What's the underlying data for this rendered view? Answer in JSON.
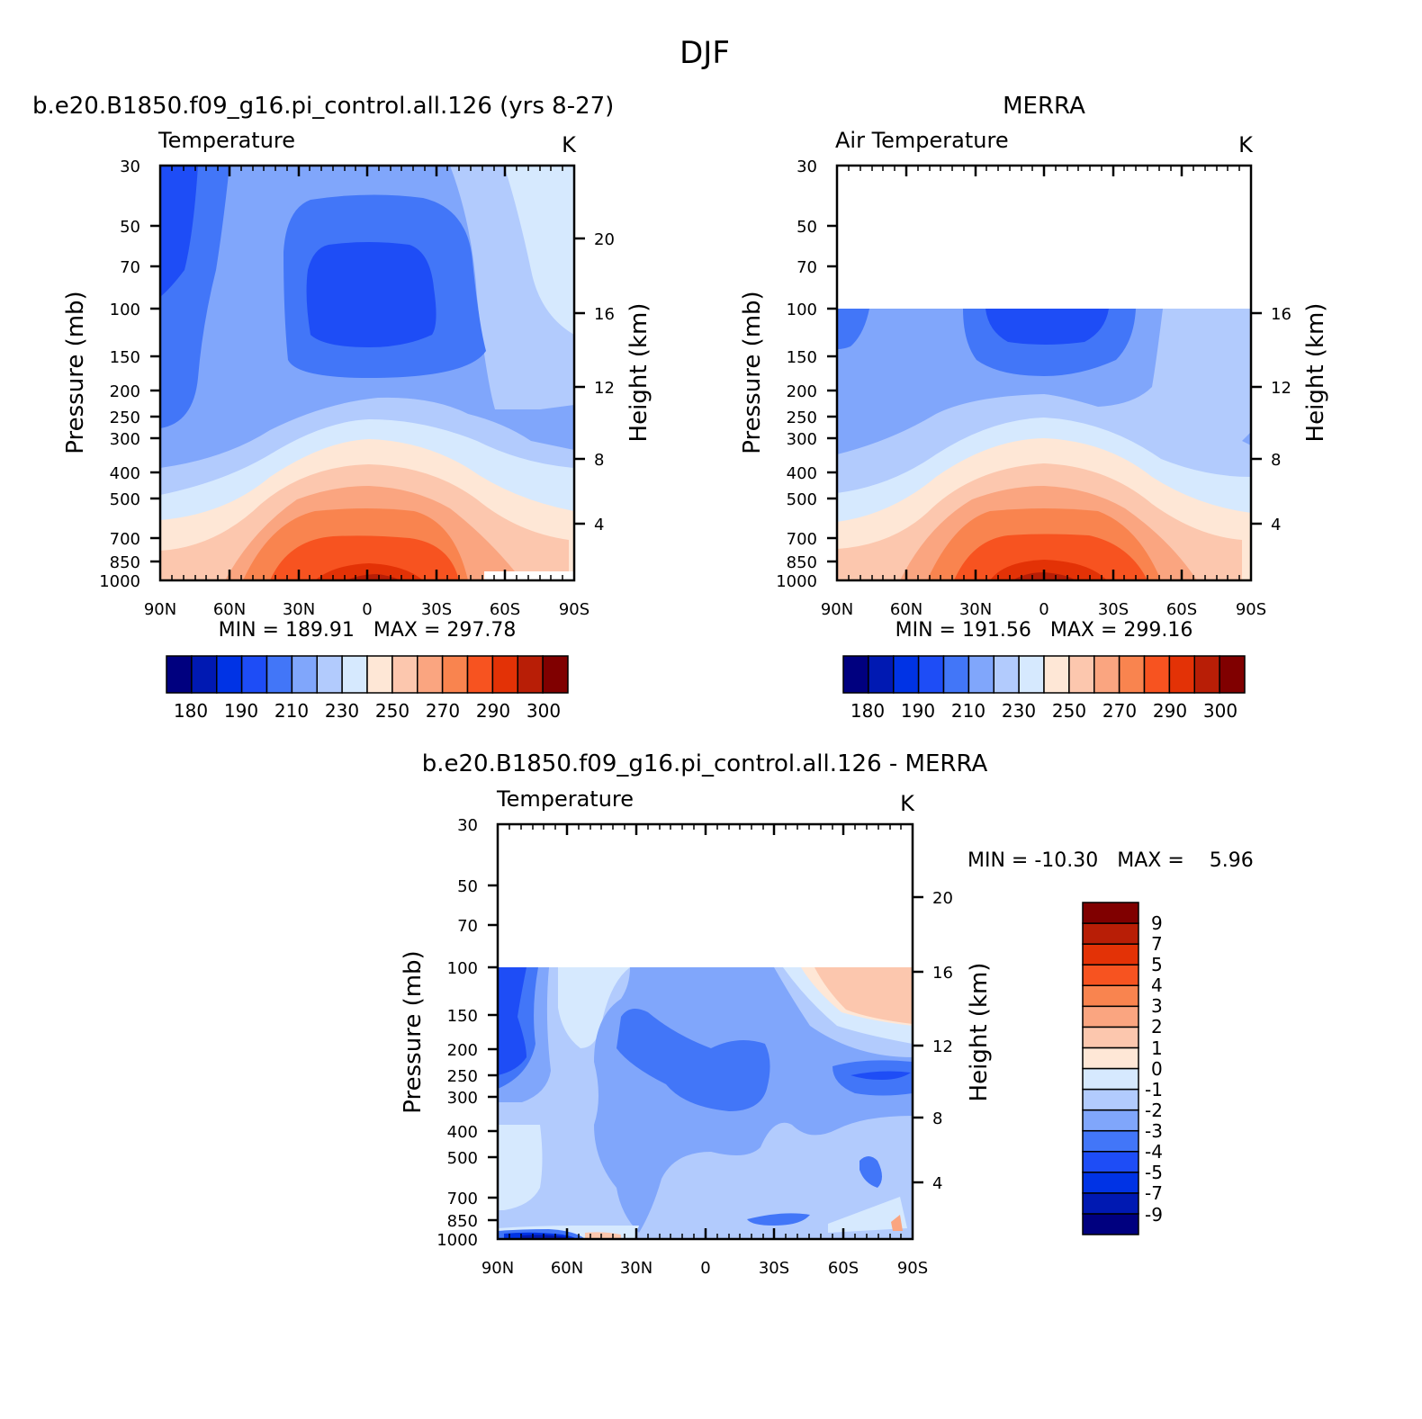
{
  "figure": {
    "title": "DJF"
  },
  "colors": {
    "abs_palette": [
      "#00007f",
      "#0019b2",
      "#0033e5",
      "#1e4df6",
      "#4276f8",
      "#80a6fb",
      "#b2cbfd",
      "#d6e9fe",
      "#fee7d6",
      "#fcc7ae",
      "#faa580",
      "#f9844f",
      "#f75320",
      "#e33206",
      "#b81e06",
      "#800000"
    ],
    "diff_palette": [
      "#00007f",
      "#0019b2",
      "#0033e5",
      "#1e4df6",
      "#4276f8",
      "#80a6fb",
      "#b2cbfd",
      "#d6e9fe",
      "#fee7d6",
      "#fcc7ae",
      "#faa580",
      "#f9844f",
      "#f75320",
      "#e33206",
      "#b81e06",
      "#800000"
    ]
  },
  "chart_data": [
    {
      "type": "heatmap",
      "panel": "model",
      "title": "b.e20.B1850.f09_g16.pi_control.all.126 (yrs 8-27)",
      "subtitle": "Temperature",
      "units": "K",
      "ylabel": "Pressure (mb)",
      "ylabel_right": "Height (km)",
      "stats": "MIN = 189.91   MAX = 297.78",
      "x_ticks": [
        "90N",
        "60N",
        "30N",
        "0",
        "30S",
        "60S",
        "90S"
      ],
      "x_values": [
        90,
        60,
        30,
        0,
        -30,
        -60,
        -90
      ],
      "y_ticks": [
        30,
        50,
        70,
        100,
        150,
        200,
        250,
        300,
        400,
        500,
        700,
        850,
        1000
      ],
      "y_right_ticks": [
        20,
        16,
        12,
        8,
        4
      ],
      "ylim": [
        1000,
        30
      ],
      "data_top_pressure": 30,
      "temp_range": [
        189.91,
        297.78
      ],
      "colorbar_labels": [
        "180",
        "190",
        "210",
        "230",
        "250",
        "270",
        "290",
        "300"
      ]
    },
    {
      "type": "heatmap",
      "panel": "obs",
      "title": "MERRA",
      "subtitle": "Air Temperature",
      "units": "K",
      "ylabel": "Pressure (mb)",
      "ylabel_right": "Height (km)",
      "stats": "MIN = 191.56   MAX = 299.16",
      "x_ticks": [
        "90N",
        "60N",
        "30N",
        "0",
        "30S",
        "60S",
        "90S"
      ],
      "x_values": [
        90,
        60,
        30,
        0,
        -30,
        -60,
        -90
      ],
      "y_ticks": [
        30,
        50,
        70,
        100,
        150,
        200,
        250,
        300,
        400,
        500,
        700,
        850,
        1000
      ],
      "y_right_ticks": [
        16,
        12,
        8,
        4
      ],
      "ylim": [
        1000,
        30
      ],
      "data_top_pressure": 100,
      "temp_range": [
        191.56,
        299.16
      ],
      "colorbar_labels": [
        "180",
        "190",
        "210",
        "230",
        "250",
        "270",
        "290",
        "300"
      ]
    },
    {
      "type": "heatmap",
      "panel": "diff",
      "title": "b.e20.B1850.f09_g16.pi_control.all.126 - MERRA",
      "subtitle": "Temperature",
      "units": "K",
      "ylabel": "Pressure (mb)",
      "ylabel_right": "Height (km)",
      "stats": "MIN = -10.30   MAX =    5.96",
      "x_ticks": [
        "90N",
        "60N",
        "30N",
        "0",
        "30S",
        "60S",
        "90S"
      ],
      "x_values": [
        90,
        60,
        30,
        0,
        -30,
        -60,
        -90
      ],
      "y_ticks": [
        30,
        50,
        70,
        100,
        150,
        200,
        250,
        300,
        400,
        500,
        700,
        850,
        1000
      ],
      "y_right_ticks": [
        20,
        16,
        12,
        8,
        4
      ],
      "ylim": [
        1000,
        30
      ],
      "data_top_pressure": 100,
      "diff_range": [
        -10.3,
        5.96
      ],
      "colorbar_labels": [
        "9",
        "7",
        "5",
        "4",
        "3",
        "2",
        "1",
        "0",
        "-1",
        "-2",
        "-3",
        "-4",
        "-5",
        "-7",
        "-9"
      ]
    }
  ]
}
